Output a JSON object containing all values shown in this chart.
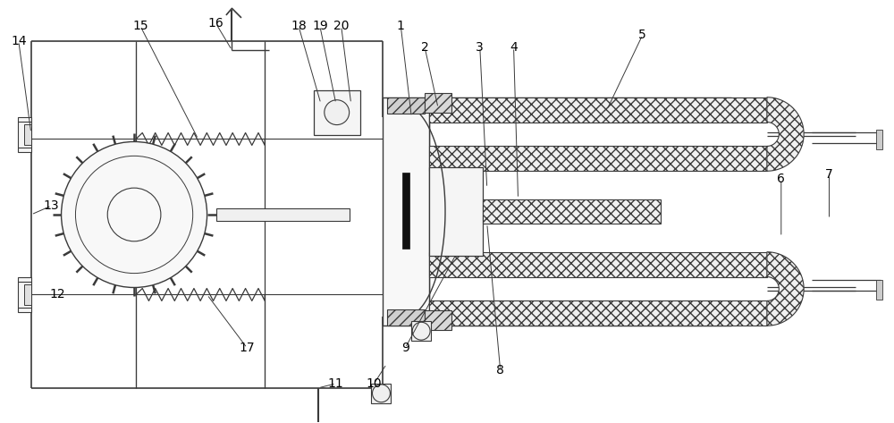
{
  "bg_color": "#ffffff",
  "line_color": "#3a3a3a",
  "label_color": "#000000",
  "fig_width": 10.0,
  "fig_height": 4.73,
  "font_size": 10
}
